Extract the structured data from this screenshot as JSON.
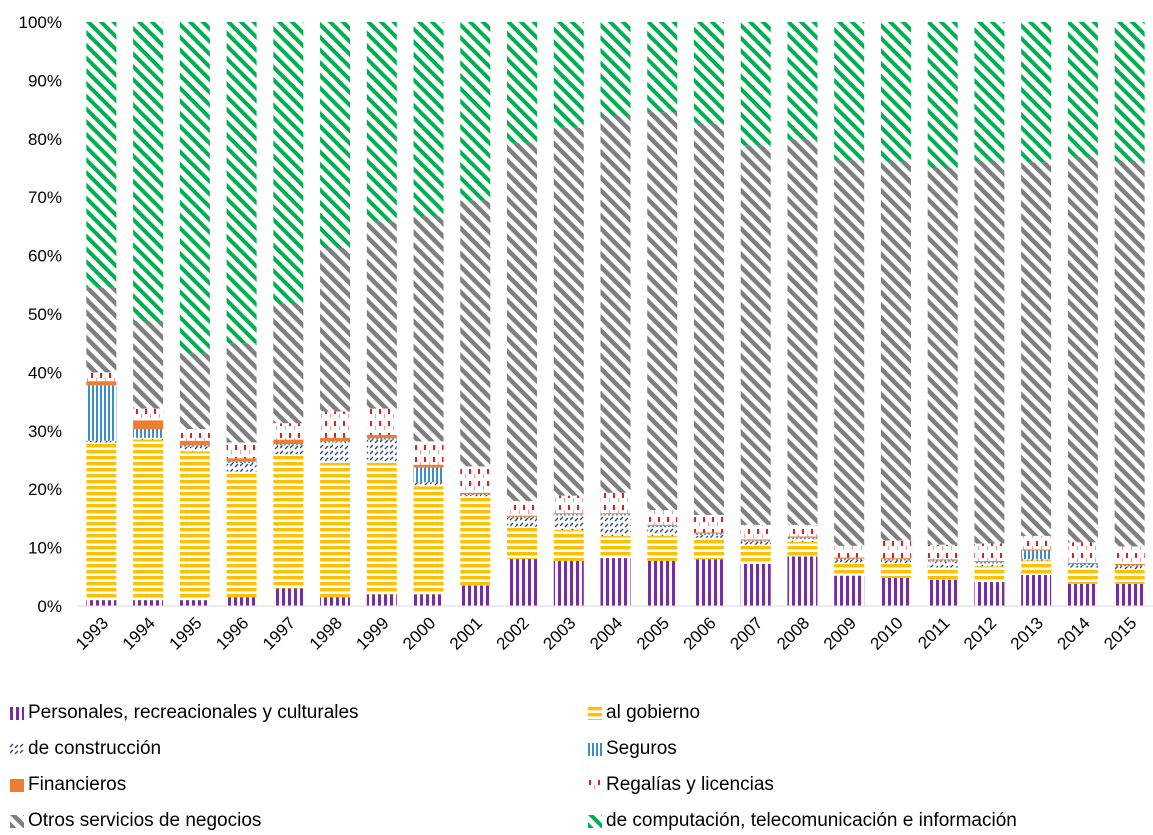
{
  "chart_data": {
    "type": "bar",
    "stacked": true,
    "normalized": true,
    "ylim": [
      0,
      100
    ],
    "ytick_labels": [
      "0%",
      "10%",
      "20%",
      "30%",
      "40%",
      "50%",
      "60%",
      "70%",
      "80%",
      "90%",
      "100%"
    ],
    "grid": false,
    "legend_position": "bottom",
    "categories": [
      "1993",
      "1994",
      "1995",
      "1996",
      "1997",
      "1998",
      "1999",
      "2000",
      "2001",
      "2002",
      "2003",
      "2004",
      "2005",
      "2006",
      "2007",
      "2008",
      "2009",
      "2010",
      "2011",
      "2012",
      "2013",
      "2014",
      "2015"
    ],
    "series": [
      {
        "name": "Personales, recreacionales y culturales",
        "color": "#7030A0",
        "pattern": "vbars",
        "values": [
          1,
          1,
          1,
          1.5,
          3,
          1.5,
          2,
          2,
          3.5,
          8,
          7.7,
          8.2,
          7.7,
          8,
          7.2,
          8.5,
          5.2,
          4.8,
          4.5,
          4.1,
          5.3,
          3.8,
          3.8
        ]
      },
      {
        "name": "al gobierno",
        "color": "#FFC000",
        "pattern": "hbars",
        "values": [
          27,
          27.5,
          25.5,
          21.5,
          23,
          23,
          22.5,
          18.5,
          15.3,
          5.5,
          5.3,
          3.8,
          4.3,
          3.7,
          3.3,
          2.5,
          2.2,
          2.5,
          2.1,
          2.7,
          2.5,
          2.8,
          2.5
        ]
      },
      {
        "name": "de construcción",
        "color": "#2E4A8C",
        "pattern": "dashes",
        "values": [
          0.3,
          0.3,
          0.8,
          1.5,
          1.5,
          3.5,
          4,
          0.7,
          0.2,
          1.5,
          2.5,
          3.5,
          1.5,
          0.5,
          0.5,
          0.5,
          0.5,
          0.5,
          1,
          0.5,
          0.2,
          0.4,
          0.5
        ]
      },
      {
        "name": "Seguros",
        "color": "#3C8DD0",
        "pattern": "vlines",
        "values": [
          9.5,
          1.5,
          0.2,
          0.2,
          0.2,
          0.2,
          0.2,
          2.5,
          0.1,
          0.2,
          0.2,
          0.2,
          0.2,
          0.2,
          0.2,
          0.2,
          0.2,
          0.2,
          0.2,
          0.2,
          1.5,
          0.2,
          0.2
        ]
      },
      {
        "name": "Financieros",
        "color": "#ED7D31",
        "pattern": "solid",
        "values": [
          0.7,
          1.5,
          0.8,
          0.6,
          0.8,
          0.6,
          0.6,
          0.5,
          0.3,
          0.2,
          0.2,
          0.2,
          0.2,
          0.2,
          0.2,
          0.2,
          0.2,
          0.2,
          0.2,
          0.2,
          0.2,
          0.2,
          0.2
        ]
      },
      {
        "name": "Regalías y licencias",
        "color": "#E02020",
        "pattern": "sparse",
        "values": [
          1.5,
          2,
          2,
          2.7,
          2.8,
          4.5,
          4.5,
          4,
          4.5,
          2.5,
          3,
          3.5,
          2.5,
          3,
          2.5,
          2,
          2,
          3,
          2.5,
          3,
          2.3,
          3.5,
          3
        ]
      },
      {
        "name": "Otros servicios de negocios",
        "color": "#7F7F7F",
        "pattern": "ddiag",
        "values": [
          14.5,
          15,
          13,
          17,
          20.5,
          28,
          32,
          38.5,
          45.5,
          61,
          63,
          64.5,
          68,
          67,
          65,
          66,
          66,
          65,
          64.5,
          65.5,
          64,
          66,
          66
        ]
      },
      {
        "name": "de computación, telecomunicación e información",
        "color": "#00B050",
        "pattern": "wdiag",
        "values": [
          45.5,
          51.2,
          56.7,
          55,
          48.2,
          38.7,
          34.2,
          33.3,
          30.6,
          20.6,
          18.1,
          16.1,
          15.4,
          17.4,
          21.1,
          20.1,
          23.7,
          23.8,
          25,
          23.8,
          24,
          23.1,
          23.8
        ]
      }
    ]
  }
}
